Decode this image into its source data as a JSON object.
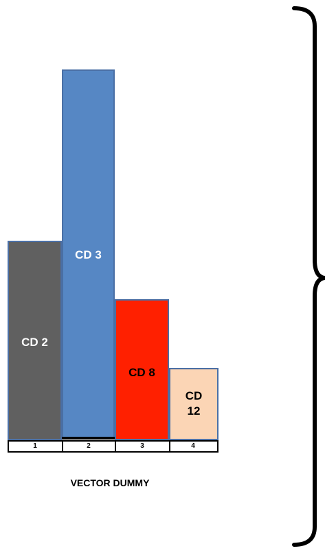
{
  "diagram": {
    "bars": [
      {
        "label": "CD 2",
        "axis_index": "1",
        "color": "#606060",
        "text_color": "#ffffff"
      },
      {
        "label": "CD 3",
        "axis_index": "2",
        "color": "#5687c4",
        "text_color": "#ffffff"
      },
      {
        "label": "CD 8",
        "axis_index": "3",
        "color": "#ff2000",
        "text_color": "#000000"
      },
      {
        "label": "CD\n12",
        "axis_index": "4",
        "color": "#fbd5b5",
        "text_color": "#000000"
      }
    ],
    "axis_title": "VECTOR DUMMY",
    "brace_color": "#000000"
  }
}
